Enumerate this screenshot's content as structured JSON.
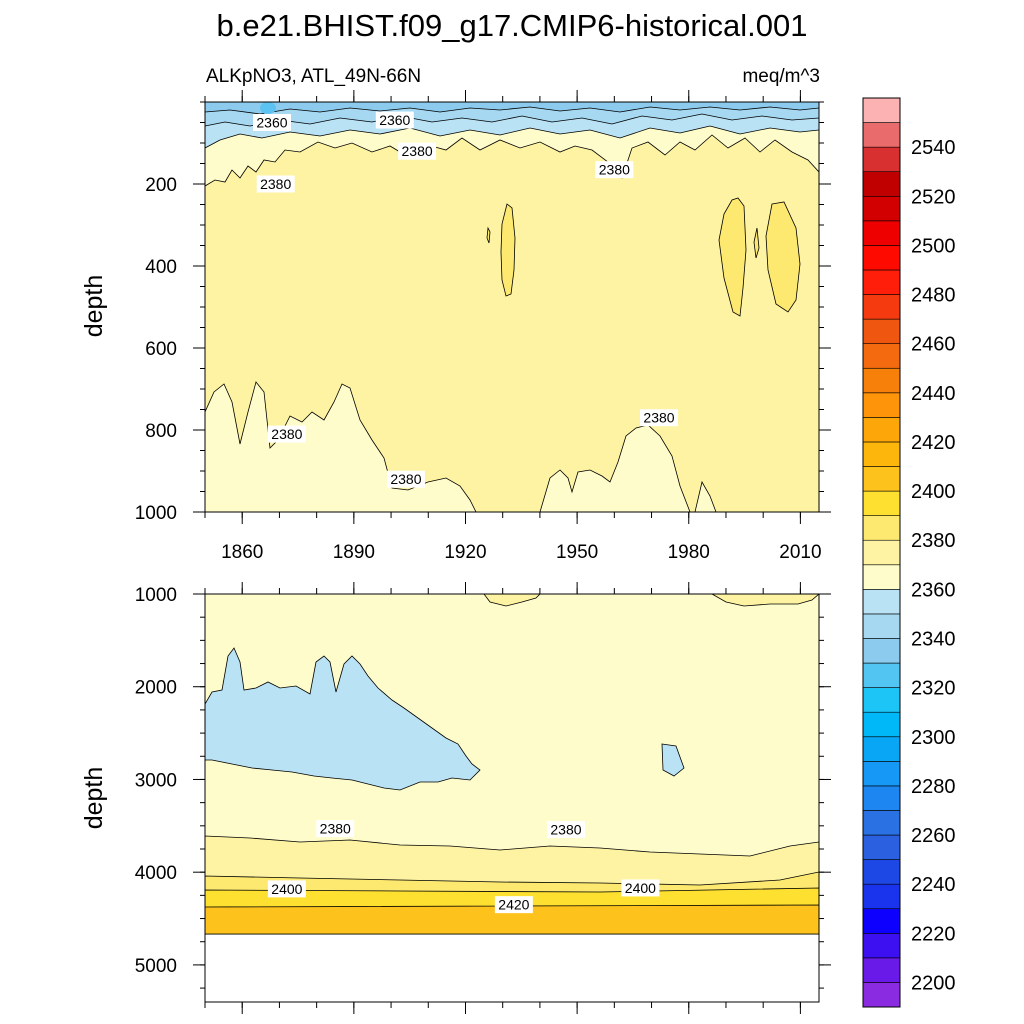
{
  "chart_data": {
    "type": "contour",
    "title": "b.e21.BHIST.f09_g17.CMIP6-historical.001",
    "variable": "ALKpNO3, ATL_49N-66N",
    "units": "meq/m^3",
    "colors": {
      "fill_2370": "#fffccb",
      "fill_2380": "#fdf3a2",
      "fill_2390": "#fde970",
      "fill_2400": "#fde030",
      "fill_2410": "#fdc31c",
      "fill_2360": "#b9e2f4",
      "fill_2350": "#a6d8f1",
      "fill_2340": "#8ccbee",
      "line": "#000000"
    },
    "x_axis": {
      "range": [
        1850,
        2015
      ],
      "ticks": [
        1860,
        1890,
        1920,
        1950,
        1980,
        2010
      ],
      "tick_labels": [
        "1860",
        "1890",
        "1920",
        "1950",
        "1980",
        "2010"
      ]
    },
    "panels": [
      {
        "name": "upper-ocean",
        "ylabel": "depth",
        "ylim": [
          0,
          1000
        ],
        "y_ticks": [
          200,
          400,
          600,
          800,
          1000
        ],
        "y_tick_labels": [
          "200",
          "400",
          "600",
          "800",
          "1000"
        ],
        "contour_labels": [
          {
            "text": "2360",
            "year": 1868,
            "depth": 50
          },
          {
            "text": "2360",
            "year": 1901,
            "depth": 44
          },
          {
            "text": "2380",
            "year": 1907,
            "depth": 120
          },
          {
            "text": "2380",
            "year": 1960,
            "depth": 165
          },
          {
            "text": "2380",
            "year": 1869,
            "depth": 200
          },
          {
            "text": "2380",
            "year": 1872,
            "depth": 810
          },
          {
            "text": "2380",
            "year": 1904,
            "depth": 920
          },
          {
            "text": "2380",
            "year": 1972,
            "depth": 770
          }
        ]
      },
      {
        "name": "deep-ocean",
        "ylabel": "depth",
        "ylim": [
          1000,
          5400
        ],
        "y_ticks": [
          1000,
          2000,
          3000,
          4000,
          5000
        ],
        "y_tick_labels": [
          "1000",
          "2000",
          "3000",
          "4000",
          "5000"
        ],
        "contour_labels": [
          {
            "text": "2380",
            "year": 1885,
            "depth": 3530
          },
          {
            "text": "2380",
            "year": 1947,
            "depth": 3540
          },
          {
            "text": "2400",
            "year": 1872,
            "depth": 4180
          },
          {
            "text": "2400",
            "year": 1967,
            "depth": 4170
          },
          {
            "text": "2420",
            "year": 1933,
            "depth": 4350
          }
        ]
      }
    ],
    "colorbar": {
      "levels": [
        2200,
        2210,
        2220,
        2230,
        2240,
        2250,
        2260,
        2270,
        2280,
        2290,
        2300,
        2310,
        2320,
        2330,
        2340,
        2350,
        2360,
        2370,
        2380,
        2390,
        2400,
        2410,
        2420,
        2430,
        2440,
        2450,
        2460,
        2470,
        2480,
        2490,
        2500,
        2510,
        2520,
        2530,
        2540,
        2550
      ],
      "colors": [
        "#8a2be2",
        "#6a1ae8",
        "#3c10f0",
        "#0d00ff",
        "#1a33ec",
        "#1e48e6",
        "#2b60e0",
        "#2a72e3",
        "#1e86f0",
        "#1698f7",
        "#08a6f5",
        "#00b7f8",
        "#1dc5f6",
        "#53c5f3",
        "#8ccbee",
        "#a6d8f1",
        "#b9e2f4",
        "#fffccb",
        "#fdf3a2",
        "#fde970",
        "#fde030",
        "#fdc31c",
        "#fdb60b",
        "#fda60a",
        "#fd940a",
        "#f7800b",
        "#f36a0f",
        "#ef5610",
        "#f53a10",
        "#ff1e0a",
        "#ff0a00",
        "#ee0000",
        "#d20000",
        "#c00000",
        "#d83030",
        "#ea6b6b",
        "#fcb2b2"
      ],
      "label_values": [
        2200,
        2220,
        2240,
        2260,
        2280,
        2300,
        2320,
        2340,
        2360,
        2380,
        2400,
        2420,
        2440,
        2460,
        2480,
        2500,
        2520,
        2540
      ],
      "label_texts": [
        "2200",
        "2220",
        "2240",
        "2260",
        "2280",
        "2300",
        "2320",
        "2340",
        "2360",
        "2380",
        "2400",
        "2420",
        "2440",
        "2460",
        "2480",
        "2500",
        "2520",
        "2540"
      ]
    }
  }
}
